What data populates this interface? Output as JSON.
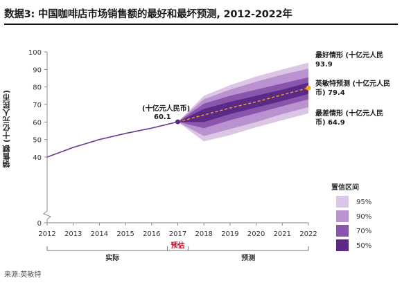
{
  "title": "数据3: 中国咖啡店市场销售额的最好和最坏预测, 2012-2022年",
  "source": "来源:英敏特",
  "chart_data": {
    "type": "line",
    "ylabel": "销售额 (十亿元人民币)",
    "ylim": [
      0,
      100
    ],
    "yticks": [
      0,
      40,
      50,
      60,
      70,
      80,
      90,
      100
    ],
    "x": [
      2012,
      2013,
      2014,
      2015,
      2016,
      2017,
      2018,
      2019,
      2020,
      2021,
      2022
    ],
    "actual": {
      "x": [
        2012,
        2013,
        2014,
        2015,
        2016,
        2017
      ],
      "values": [
        40,
        45.5,
        50,
        53.5,
        56.5,
        60.1
      ]
    },
    "forecast": {
      "x": [
        2017,
        2018,
        2019,
        2020,
        2021,
        2022
      ],
      "values": [
        60.1,
        64,
        68,
        71.5,
        75.5,
        79.4
      ]
    },
    "fan": {
      "x": [
        2017,
        2018,
        2019,
        2020,
        2021,
        2022
      ],
      "bands": [
        {
          "label": "95%",
          "color": "#dcc6e6",
          "lower": [
            60.1,
            49,
            52.5,
            57,
            61,
            64.9
          ],
          "upper": [
            60.1,
            75,
            81,
            86,
            90,
            93.9
          ]
        },
        {
          "label": "90%",
          "color": "#b992cf",
          "lower": [
            60.1,
            52,
            56,
            60,
            64.5,
            68.5
          ],
          "upper": [
            60.1,
            73,
            78.5,
            83,
            87,
            90.5
          ]
        },
        {
          "label": "70%",
          "color": "#8a56ad",
          "lower": [
            60.1,
            56.5,
            61,
            65,
            69,
            73
          ],
          "upper": [
            60.1,
            70.5,
            75,
            78.5,
            82,
            85.5
          ]
        },
        {
          "label": "50%",
          "color": "#5a2a86",
          "lower": [
            60.1,
            60,
            64.5,
            68.3,
            72,
            76
          ],
          "upper": [
            60.1,
            67.5,
            71.5,
            75,
            78.5,
            82.5
          ]
        }
      ]
    },
    "legend_title": "置信区间",
    "annotations": {
      "point_2017_unit": "(十亿元人民币)",
      "point_2017_value": "60.1",
      "best_label": "最好情形 (十亿元人民",
      "best_value": "93.9",
      "mintel_label": "英敏特预测 (十亿元人民",
      "mintel_value": "币) 79.4",
      "worst_label": "最差情形 (十亿元人民",
      "worst_value": "币) 64.9"
    },
    "periods": {
      "actual": "实际",
      "estimate": "预估",
      "forecast": "预测"
    },
    "colors": {
      "actual_line": "#6a3d8e",
      "forecast_line": "#f5a623",
      "point_2017": "#5a2a86",
      "estimate_text": "#d0021b",
      "axis": "#888888"
    }
  }
}
